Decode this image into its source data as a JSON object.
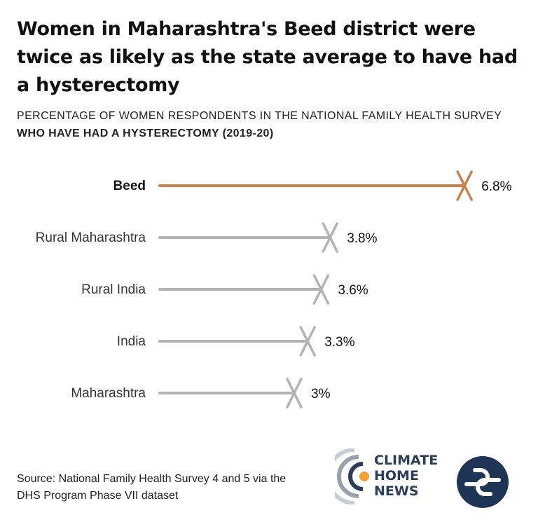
{
  "header": {
    "title": "Women in Maharashtra's Beed district were twice as likely as the state average to have had a hysterectomy",
    "subtitle_line1": "PERCENTAGE OF WOMEN RESPONDENTS IN THE NATIONAL FAMILY HEALTH SURVEY",
    "subtitle_line2": "WHO HAVE HAD A HYSTERECTOMY (2019-20)"
  },
  "footer": {
    "source_line1": "Source: National Family Health Survey 4 and 5 via the",
    "source_line2": "DHS Program Phase VII dataset"
  },
  "logos": {
    "climate_home_news": [
      "CLIMATE",
      "HOME",
      "NEWS"
    ]
  },
  "colors": {
    "highlight": "#c8844a",
    "default": "#b3b3b3",
    "logo_navy": "#1f3556",
    "logo_orange": "#f0a030"
  },
  "chart_data": {
    "type": "bar",
    "categories": [
      "Beed",
      "Rural Maharashtra",
      "Rural India",
      "India",
      "Maharashtra"
    ],
    "values": [
      6.8,
      3.8,
      3.6,
      3.3,
      3.0
    ],
    "data_labels": [
      "6.8%",
      "3.8%",
      "3.6%",
      "3.3%",
      "3%"
    ],
    "highlighted": [
      "Beed"
    ],
    "marker": "x",
    "xlim": [
      0,
      6.8
    ],
    "grid": false
  }
}
